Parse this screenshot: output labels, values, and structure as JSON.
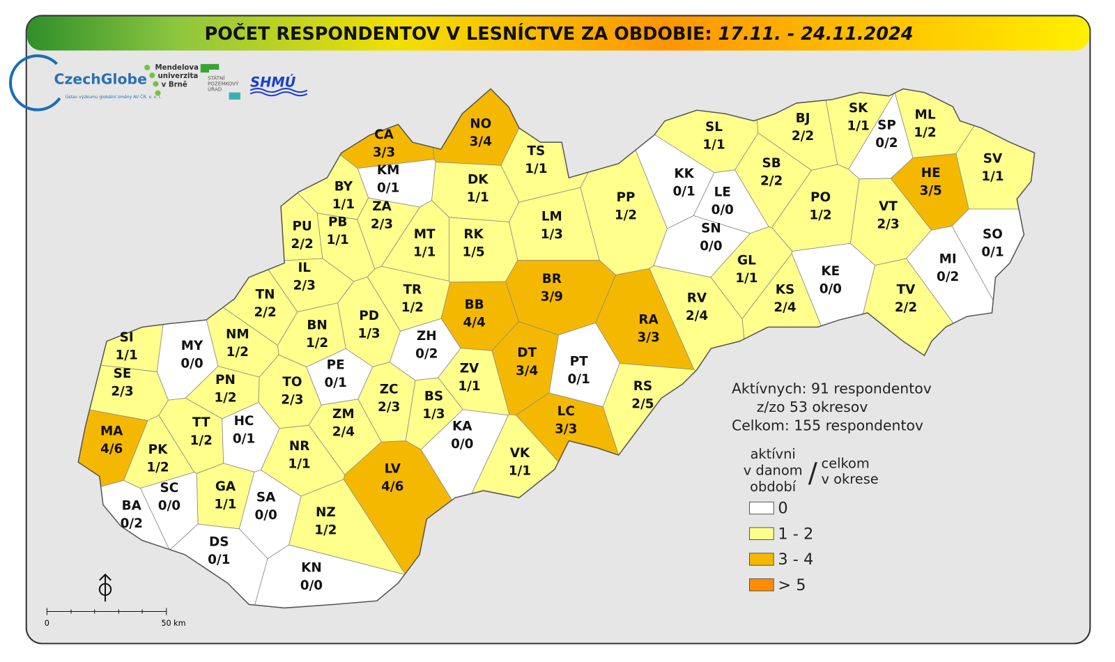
{
  "header": {
    "title": "POČET RESPONDENTOV V LESNÍCTVE ZA OBDOBIE: ",
    "period": "17.11. - 24.11.2024"
  },
  "logos": {
    "czechglobe": "CzechGlobe",
    "czechglobe_sub": "Ústav výzkumu globální změny AV ČR, v. v. i.",
    "mendelu": [
      "Mendelova",
      "univerzita",
      "v Brně"
    ],
    "spu": [
      "STÁTNÍ",
      "POZEMKOVÝ",
      "ÚŘAD"
    ],
    "shmu": "SHMÚ"
  },
  "districts": [
    {
      "code": "CA",
      "label": "3/3",
      "color": "#f5b800"
    },
    {
      "code": "NO",
      "label": "3/4",
      "color": "#f5b800"
    },
    {
      "code": "TS",
      "label": "1/1",
      "color": "#ffff8c"
    },
    {
      "code": "KM",
      "label": "0/1",
      "color": "#ffffff"
    },
    {
      "code": "DK",
      "label": "1/1",
      "color": "#ffff8c"
    },
    {
      "code": "BY",
      "label": "1/1",
      "color": "#ffff8c"
    },
    {
      "code": "ZA",
      "label": "2/3",
      "color": "#ffff8c"
    },
    {
      "code": "PU",
      "label": "2/2",
      "color": "#ffff8c"
    },
    {
      "code": "PB",
      "label": "1/1",
      "color": "#ffff8c"
    },
    {
      "code": "MT",
      "label": "1/1",
      "color": "#ffff8c"
    },
    {
      "code": "RK",
      "label": "1/5",
      "color": "#ffff8c"
    },
    {
      "code": "LM",
      "label": "1/3",
      "color": "#ffff8c"
    },
    {
      "code": "PP",
      "label": "1/2",
      "color": "#ffff8c"
    },
    {
      "code": "KK",
      "label": "0/1",
      "color": "#ffffff"
    },
    {
      "code": "LE",
      "label": "0/0",
      "color": "#ffffff"
    },
    {
      "code": "SN",
      "label": "0/0",
      "color": "#ffffff"
    },
    {
      "code": "SL",
      "label": "1/1",
      "color": "#ffff8c"
    },
    {
      "code": "BJ",
      "label": "2/2",
      "color": "#ffff8c"
    },
    {
      "code": "SK",
      "label": "1/1",
      "color": "#ffff8c"
    },
    {
      "code": "SP",
      "label": "0/2",
      "color": "#ffffff"
    },
    {
      "code": "ML",
      "label": "1/2",
      "color": "#ffff8c"
    },
    {
      "code": "HE",
      "label": "3/5",
      "color": "#f5b800"
    },
    {
      "code": "SV",
      "label": "1/1",
      "color": "#ffff8c"
    },
    {
      "code": "SB",
      "label": "2/2",
      "color": "#ffff8c"
    },
    {
      "code": "PO",
      "label": "1/2",
      "color": "#ffff8c"
    },
    {
      "code": "VT",
      "label": "2/3",
      "color": "#ffff8c"
    },
    {
      "code": "SO",
      "label": "0/1",
      "color": "#ffffff"
    },
    {
      "code": "MI",
      "label": "0/2",
      "color": "#ffffff"
    },
    {
      "code": "GL",
      "label": "1/1",
      "color": "#ffff8c"
    },
    {
      "code": "KE",
      "label": "0/0",
      "color": "#ffffff"
    },
    {
      "code": "KS",
      "label": "2/4",
      "color": "#ffff8c"
    },
    {
      "code": "TV",
      "label": "2/2",
      "color": "#ffff8c"
    },
    {
      "code": "RV",
      "label": "2/4",
      "color": "#ffff8c"
    },
    {
      "code": "RA",
      "label": "3/3",
      "color": "#f5b800"
    },
    {
      "code": "BR",
      "label": "3/9",
      "color": "#f5b800"
    },
    {
      "code": "BB",
      "label": "4/4",
      "color": "#f5b800"
    },
    {
      "code": "IL",
      "label": "2/3",
      "color": "#ffff8c"
    },
    {
      "code": "TN",
      "label": "2/2",
      "color": "#ffff8c"
    },
    {
      "code": "TR",
      "label": "1/2",
      "color": "#ffff8c"
    },
    {
      "code": "PD",
      "label": "1/3",
      "color": "#ffff8c"
    },
    {
      "code": "BN",
      "label": "1/2",
      "color": "#ffff8c"
    },
    {
      "code": "NM",
      "label": "1/2",
      "color": "#ffff8c"
    },
    {
      "code": "SI",
      "label": "1/1",
      "color": "#ffff8c"
    },
    {
      "code": "MY",
      "label": "0/0",
      "color": "#ffffff"
    },
    {
      "code": "ZH",
      "label": "0/2",
      "color": "#ffffff"
    },
    {
      "code": "DT",
      "label": "3/4",
      "color": "#f5b800"
    },
    {
      "code": "PT",
      "label": "0/1",
      "color": "#ffffff"
    },
    {
      "code": "RS",
      "label": "2/5",
      "color": "#ffff8c"
    },
    {
      "code": "SE",
      "label": "2/3",
      "color": "#ffff8c"
    },
    {
      "code": "PN",
      "label": "1/2",
      "color": "#ffff8c"
    },
    {
      "code": "TO",
      "label": "2/3",
      "color": "#ffff8c"
    },
    {
      "code": "PE",
      "label": "0/1",
      "color": "#ffffff"
    },
    {
      "code": "ZV",
      "label": "1/1",
      "color": "#ffff8c"
    },
    {
      "code": "ZC",
      "label": "2/3",
      "color": "#ffff8c"
    },
    {
      "code": "BS",
      "label": "1/3",
      "color": "#ffff8c"
    },
    {
      "code": "LC",
      "label": "3/3",
      "color": "#f5b800"
    },
    {
      "code": "MA",
      "label": "4/6",
      "color": "#f5b800"
    },
    {
      "code": "TT",
      "label": "1/2",
      "color": "#ffff8c"
    },
    {
      "code": "HC",
      "label": "0/1",
      "color": "#ffffff"
    },
    {
      "code": "ZM",
      "label": "2/4",
      "color": "#ffff8c"
    },
    {
      "code": "KA",
      "label": "0/0",
      "color": "#ffffff"
    },
    {
      "code": "NR",
      "label": "1/1",
      "color": "#ffff8c"
    },
    {
      "code": "VK",
      "label": "1/1",
      "color": "#ffff8c"
    },
    {
      "code": "LV",
      "label": "4/6",
      "color": "#f5b800"
    },
    {
      "code": "PK",
      "label": "1/2",
      "color": "#ffff8c"
    },
    {
      "code": "GA",
      "label": "1/1",
      "color": "#ffff8c"
    },
    {
      "code": "SC",
      "label": "0/0",
      "color": "#ffffff"
    },
    {
      "code": "SA",
      "label": "0/0",
      "color": "#ffffff"
    },
    {
      "code": "BA",
      "label": "0/2",
      "color": "#ffffff"
    },
    {
      "code": "NZ",
      "label": "1/2",
      "color": "#ffff8c"
    },
    {
      "code": "DS",
      "label": "0/1",
      "color": "#ffffff"
    },
    {
      "code": "KN",
      "label": "0/0",
      "color": "#ffffff"
    }
  ],
  "stats": [
    "Aktívnych: 91 respondentov",
    "z/zo 53 okresov",
    "Celkom: 155 respondentov"
  ],
  "legend": {
    "active": [
      "aktívni",
      "v danom",
      "období"
    ],
    "slash": "/",
    "total": [
      "celkom",
      "v okrese"
    ],
    "items": [
      {
        "label": "0",
        "color": "#ffffff"
      },
      {
        "label": "1 - 2",
        "color": "#ffff8c"
      },
      {
        "label": "3 - 4",
        "color": "#f5b800"
      },
      {
        "label": "> 5",
        "color": "#ff8c00"
      }
    ]
  },
  "scale": [
    "0",
    "50 km"
  ]
}
